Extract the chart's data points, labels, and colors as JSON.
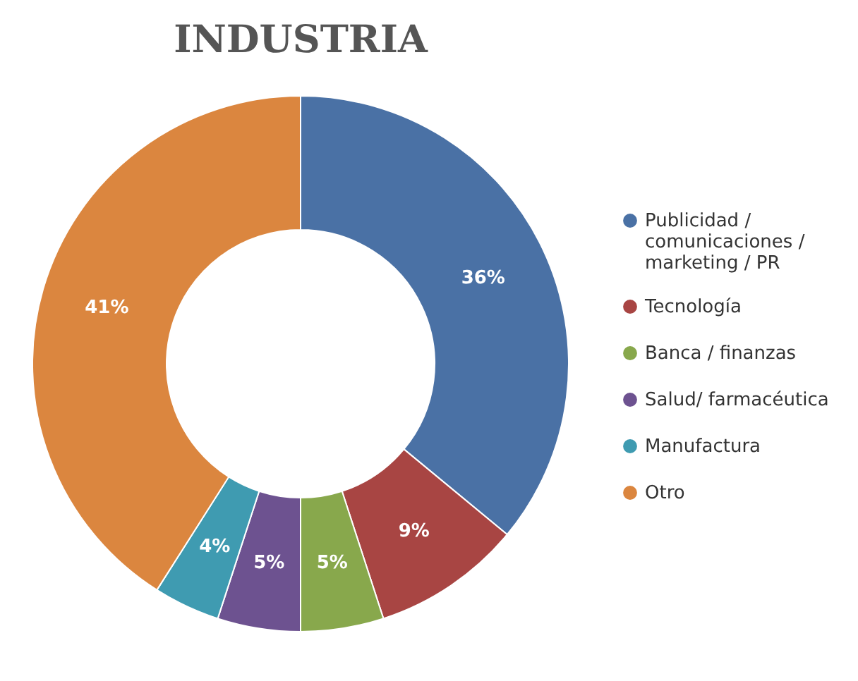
{
  "chart_data": {
    "type": "donut",
    "title": "INDUSTRIA",
    "categories": [
      "Publicidad / comunicaciones / marketing / PR",
      "Tecnología",
      "Banca / finanzas",
      "Salud/ farmacéutica",
      "Manufactura",
      "Otro"
    ],
    "values": [
      36,
      9,
      5,
      5,
      4,
      41
    ],
    "colors": [
      "#4a71a5",
      "#a84543",
      "#88a84c",
      "#6d5290",
      "#3f9bb1",
      "#db863f"
    ],
    "value_labels": [
      "36%",
      "9%",
      "5%",
      "5%",
      "4%",
      "41%"
    ],
    "legend": "right"
  }
}
